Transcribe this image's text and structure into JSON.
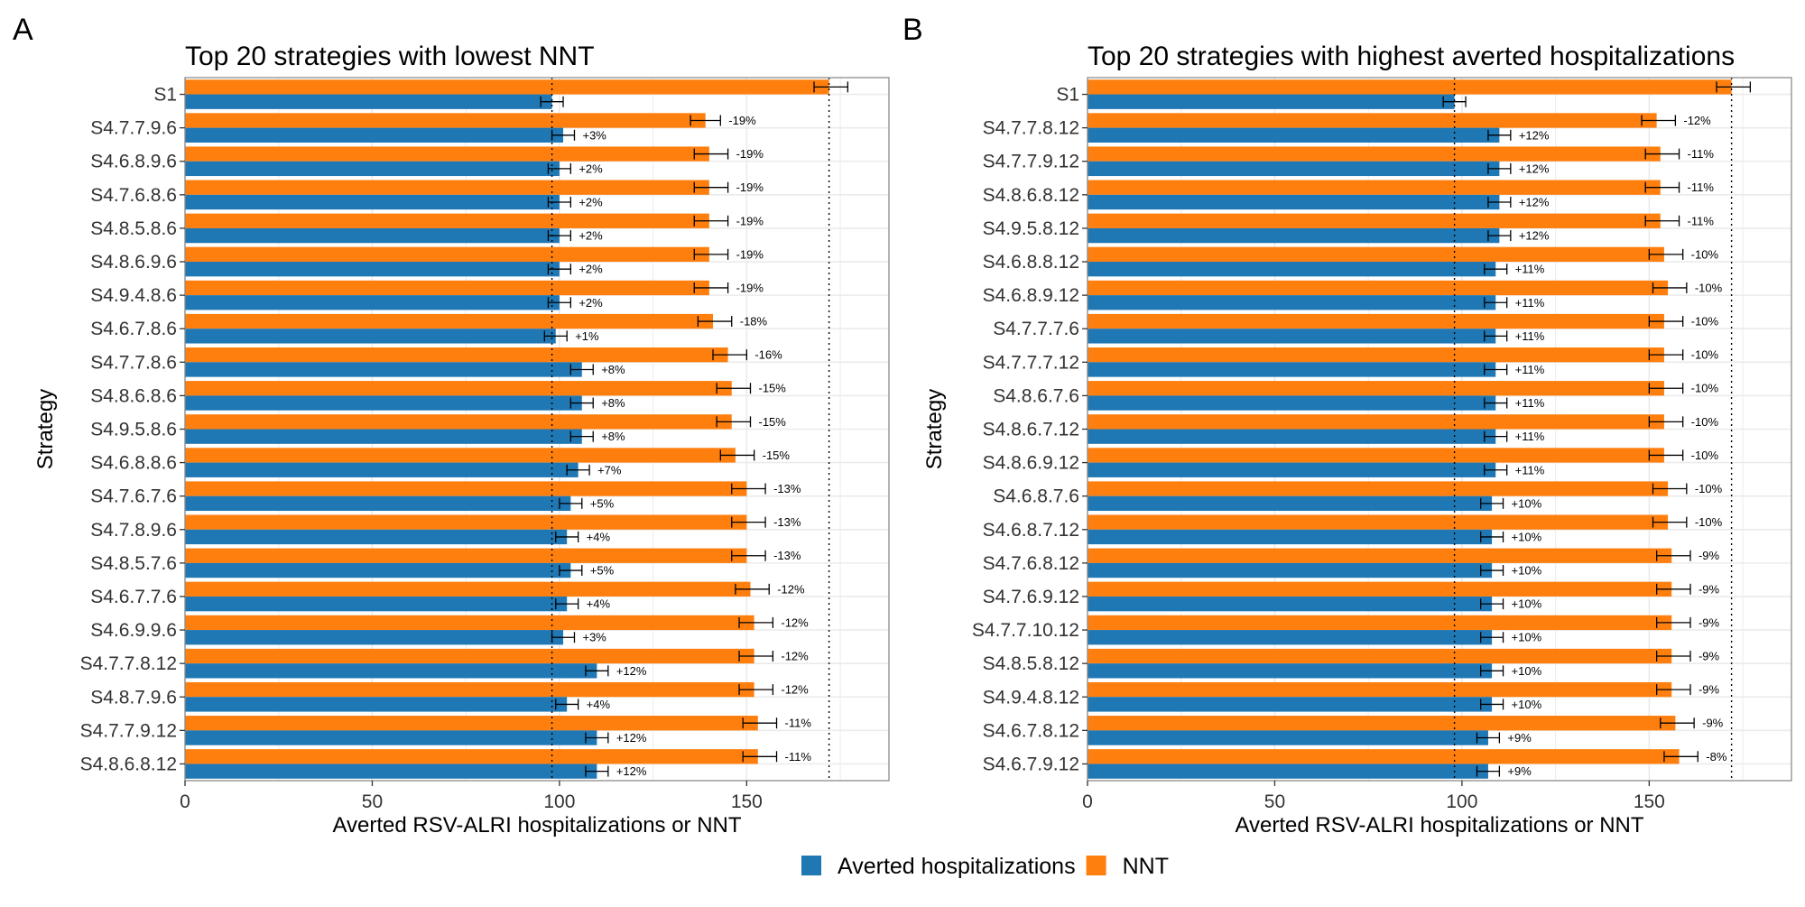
{
  "colors": {
    "averted": "#1f77b4",
    "nnt": "#ff7f0e",
    "grid": "#ebebeb",
    "panel_border": "#8c8c8c",
    "error_bar": "#000000",
    "reference_line": "#000000"
  },
  "legend": {
    "position": "bottom",
    "items": [
      {
        "key": "averted",
        "label": "Averted hospitalizations"
      },
      {
        "key": "nnt",
        "label": "NNT"
      }
    ]
  },
  "chart_data": [
    {
      "type": "bar",
      "orientation": "horizontal",
      "panel_letter": "A",
      "title": "Top 20 strategies with lowest NNT",
      "xlabel": "Averted RSV-ALRI hospitalizations or NNT",
      "ylabel": "Strategy",
      "xlim": [
        0,
        188
      ],
      "xticks": [
        0,
        50,
        100,
        150
      ],
      "grid": true,
      "reference_lines": {
        "averted": 98,
        "nnt": 172
      },
      "categories": [
        "S1",
        "S4.7.7.9.6",
        "S4.6.8.9.6",
        "S4.7.6.8.6",
        "S4.8.5.8.6",
        "S4.8.6.9.6",
        "S4.9.4.8.6",
        "S4.6.7.8.6",
        "S4.7.7.8.6",
        "S4.8.6.8.6",
        "S4.9.5.8.6",
        "S4.6.8.8.6",
        "S4.7.6.7.6",
        "S4.7.8.9.6",
        "S4.8.5.7.6",
        "S4.6.7.7.6",
        "S4.6.9.9.6",
        "S4.7.7.8.12",
        "S4.8.7.9.6",
        "S4.7.7.9.12",
        "S4.8.6.8.12"
      ],
      "series": [
        {
          "name": "NNT",
          "key": "nnt",
          "values": [
            172,
            139,
            140,
            140,
            140,
            140,
            140,
            141,
            145,
            146,
            146,
            147,
            150,
            150,
            150,
            151,
            152,
            152,
            152,
            153,
            153
          ],
          "err_low": [
            168,
            135,
            136,
            136,
            136,
            136,
            136,
            137,
            141,
            142,
            142,
            143,
            146,
            146,
            146,
            147,
            148,
            148,
            148,
            149,
            149
          ],
          "err_high": [
            177,
            143,
            145,
            145,
            145,
            145,
            145,
            146,
            150,
            151,
            151,
            152,
            155,
            155,
            155,
            156,
            157,
            157,
            157,
            158,
            158
          ],
          "labels": [
            "",
            "-19%",
            "-19%",
            "-19%",
            "-19%",
            "-19%",
            "-19%",
            "-18%",
            "-16%",
            "-15%",
            "-15%",
            "-15%",
            "-13%",
            "-13%",
            "-13%",
            "-12%",
            "-12%",
            "-12%",
            "-12%",
            "-11%",
            "-11%"
          ]
        },
        {
          "name": "Averted hospitalizations",
          "key": "averted",
          "values": [
            98,
            101,
            100,
            100,
            100,
            100,
            100,
            99,
            106,
            106,
            106,
            105,
            103,
            102,
            103,
            102,
            101,
            110,
            102,
            110,
            110
          ],
          "err_low": [
            95,
            98,
            97,
            97,
            97,
            97,
            97,
            96,
            103,
            103,
            103,
            102,
            100,
            99,
            100,
            99,
            98,
            107,
            99,
            107,
            107
          ],
          "err_high": [
            101,
            104,
            103,
            103,
            103,
            103,
            103,
            102,
            109,
            109,
            109,
            108,
            106,
            105,
            106,
            105,
            104,
            113,
            105,
            113,
            113
          ],
          "labels": [
            "",
            "+3%",
            "+2%",
            "+2%",
            "+2%",
            "+2%",
            "+2%",
            "+1%",
            "+8%",
            "+8%",
            "+8%",
            "+7%",
            "+5%",
            "+4%",
            "+5%",
            "+4%",
            "+3%",
            "+12%",
            "+4%",
            "+12%",
            "+12%"
          ]
        }
      ]
    },
    {
      "type": "bar",
      "orientation": "horizontal",
      "panel_letter": "B",
      "title": "Top 20 strategies with highest averted hospitalizations",
      "xlabel": "Averted RSV-ALRI hospitalizations or NNT",
      "ylabel": "Strategy",
      "xlim": [
        0,
        188
      ],
      "xticks": [
        0,
        50,
        100,
        150
      ],
      "grid": true,
      "reference_lines": {
        "averted": 98,
        "nnt": 172
      },
      "categories": [
        "S1",
        "S4.7.7.8.12",
        "S4.7.7.9.12",
        "S4.8.6.8.12",
        "S4.9.5.8.12",
        "S4.6.8.8.12",
        "S4.6.8.9.12",
        "S4.7.7.7.6",
        "S4.7.7.7.12",
        "S4.8.6.7.6",
        "S4.8.6.7.12",
        "S4.8.6.9.12",
        "S4.6.8.7.6",
        "S4.6.8.7.12",
        "S4.7.6.8.12",
        "S4.7.6.9.12",
        "S4.7.7.10.12",
        "S4.8.5.8.12",
        "S4.9.4.8.12",
        "S4.6.7.8.12",
        "S4.6.7.9.12"
      ],
      "series": [
        {
          "name": "NNT",
          "key": "nnt",
          "values": [
            172,
            152,
            153,
            153,
            153,
            154,
            155,
            154,
            154,
            154,
            154,
            154,
            155,
            155,
            156,
            156,
            156,
            156,
            156,
            157,
            158
          ],
          "err_low": [
            168,
            148,
            149,
            149,
            149,
            150,
            151,
            150,
            150,
            150,
            150,
            150,
            151,
            151,
            152,
            152,
            152,
            152,
            152,
            153,
            154
          ],
          "err_high": [
            177,
            157,
            158,
            158,
            158,
            159,
            160,
            159,
            159,
            159,
            159,
            159,
            160,
            160,
            161,
            161,
            161,
            161,
            161,
            162,
            163
          ],
          "labels": [
            "",
            "-12%",
            "-11%",
            "-11%",
            "-11%",
            "-10%",
            "-10%",
            "-10%",
            "-10%",
            "-10%",
            "-10%",
            "-10%",
            "-10%",
            "-10%",
            "-9%",
            "-9%",
            "-9%",
            "-9%",
            "-9%",
            "-9%",
            "-8%"
          ]
        },
        {
          "name": "Averted hospitalizations",
          "key": "averted",
          "values": [
            98,
            110,
            110,
            110,
            110,
            109,
            109,
            109,
            109,
            109,
            109,
            109,
            108,
            108,
            108,
            108,
            108,
            108,
            108,
            107,
            107
          ],
          "err_low": [
            95,
            107,
            107,
            107,
            107,
            106,
            106,
            106,
            106,
            106,
            106,
            106,
            105,
            105,
            105,
            105,
            105,
            105,
            105,
            104,
            104
          ],
          "err_high": [
            101,
            113,
            113,
            113,
            113,
            112,
            112,
            112,
            112,
            112,
            112,
            112,
            111,
            111,
            111,
            111,
            111,
            111,
            111,
            110,
            110
          ],
          "labels": [
            "",
            "+12%",
            "+12%",
            "+12%",
            "+12%",
            "+11%",
            "+11%",
            "+11%",
            "+11%",
            "+11%",
            "+11%",
            "+11%",
            "+10%",
            "+10%",
            "+10%",
            "+10%",
            "+10%",
            "+10%",
            "+10%",
            "+9%",
            "+9%"
          ]
        }
      ]
    }
  ]
}
